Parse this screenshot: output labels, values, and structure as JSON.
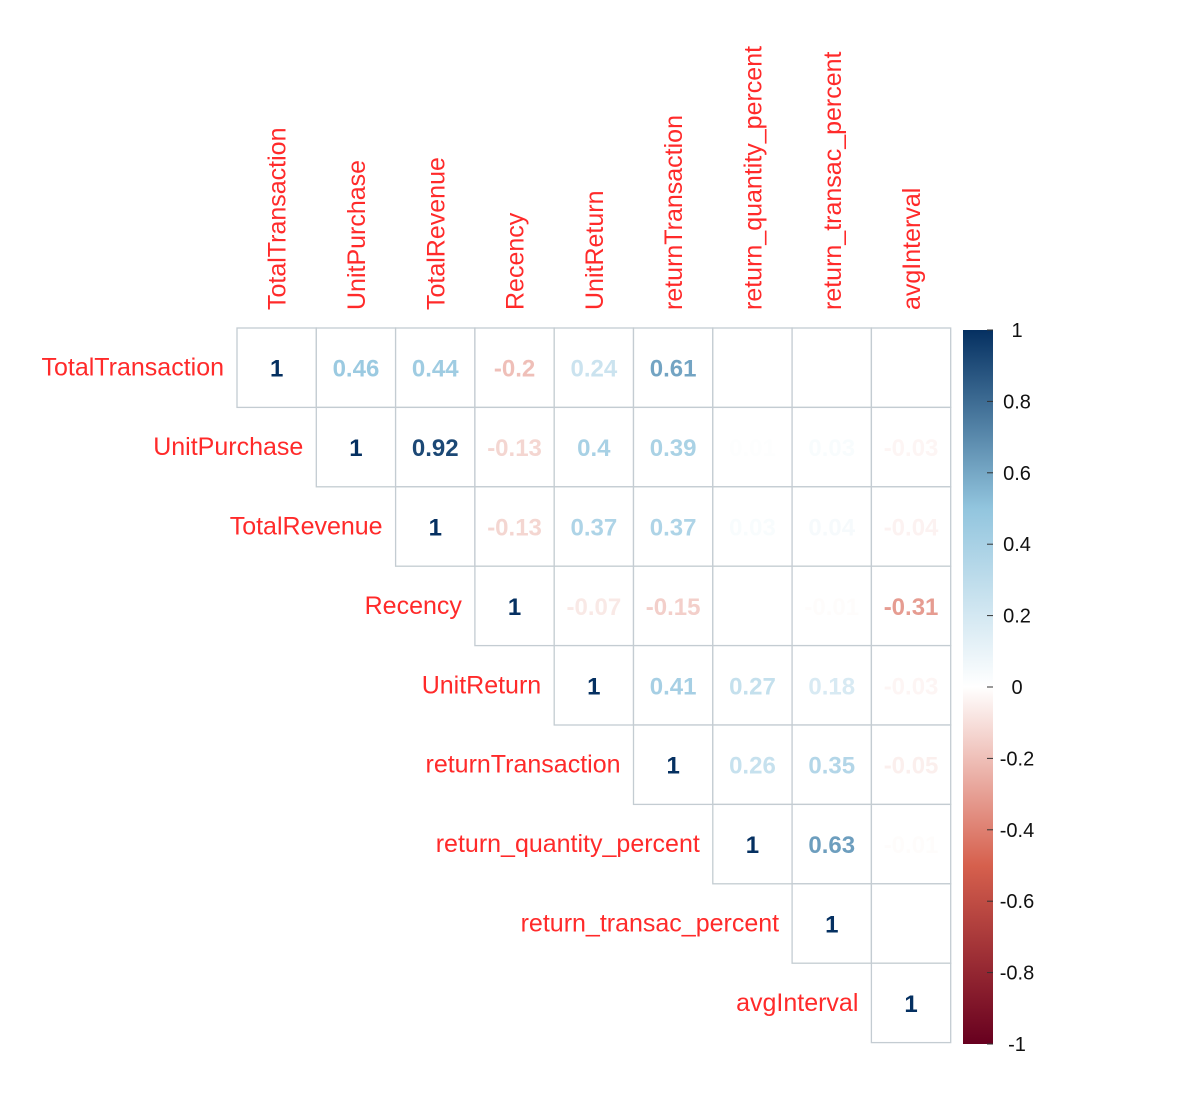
{
  "chart_data": {
    "type": "heatmap",
    "title": "",
    "variables": [
      "TotalTransaction",
      "UnitPurchase",
      "TotalRevenue",
      "Recency",
      "UnitReturn",
      "returnTransaction",
      "return_quantity_percent",
      "return_transac_percent",
      "avgInterval"
    ],
    "matrix_upper": [
      [
        "1",
        "0.46",
        "0.44",
        "-0.2",
        "0.24",
        "0.61",
        null,
        null,
        null
      ],
      [
        null,
        "1",
        "0.92",
        "-0.13",
        "0.4",
        "0.39",
        "0.01",
        "0.03",
        "-0.03"
      ],
      [
        null,
        null,
        "1",
        "-0.13",
        "0.37",
        "0.37",
        "0.03",
        "0.04",
        "-0.04"
      ],
      [
        null,
        null,
        null,
        "1",
        "-0.07",
        "-0.15",
        null,
        "-0.01",
        "-0.31"
      ],
      [
        null,
        null,
        null,
        null,
        "1",
        "0.41",
        "0.27",
        "0.18",
        "-0.03"
      ],
      [
        null,
        null,
        null,
        null,
        null,
        "1",
        "0.26",
        "0.35",
        "-0.05"
      ],
      [
        null,
        null,
        null,
        null,
        null,
        null,
        "1",
        "0.63",
        "-0.01"
      ],
      [
        null,
        null,
        null,
        null,
        null,
        null,
        null,
        "1",
        null
      ],
      [
        null,
        null,
        null,
        null,
        null,
        null,
        null,
        null,
        "1"
      ]
    ],
    "colorbar": {
      "range": [
        -1,
        1
      ],
      "ticks": [
        "1",
        "0.8",
        "0.6",
        "0.4",
        "0.2",
        "0",
        "-0.2",
        "-0.4",
        "-0.6",
        "-0.8",
        "-1"
      ],
      "colors": [
        "#67001f",
        "#d6604d",
        "#ffffff",
        "#92c5de",
        "#053061"
      ]
    },
    "colors": {
      "label": "#ff2a2a",
      "grid": "#c4ccd2"
    }
  }
}
